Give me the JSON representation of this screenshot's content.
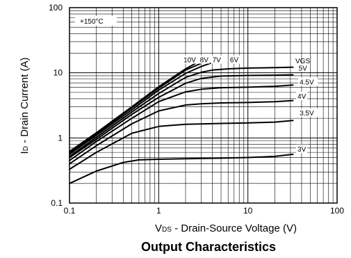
{
  "chart_data": {
    "type": "line",
    "title": "Output Characteristics",
    "xlabel": {
      "sym": "V",
      "sub": "DS",
      "rest": " - Drain-Source Voltage (V)"
    },
    "ylabel": {
      "sym": "I",
      "sub": "D",
      "rest": " - Drain Current (A)"
    },
    "x_scale": "log",
    "y_scale": "log",
    "xlim": [
      0.1,
      100
    ],
    "ylim": [
      0.1,
      100
    ],
    "x_ticks": [
      {
        "value": 0.1,
        "label": "0.1"
      },
      {
        "value": 1,
        "label": "1"
      },
      {
        "value": 10,
        "label": "10"
      },
      {
        "value": 100,
        "label": "100"
      }
    ],
    "y_ticks": [
      {
        "value": 0.1,
        "label": "0.1"
      },
      {
        "value": 1,
        "label": "1"
      },
      {
        "value": 10,
        "label": "10"
      },
      {
        "value": 100,
        "label": "100"
      }
    ],
    "grid": true,
    "annotation": "+150°C",
    "legend_header": "VGS",
    "series": [
      {
        "name": "10V",
        "label_at": [
          1.9,
          14.5
        ],
        "points": [
          [
            0.1,
            0.62
          ],
          [
            0.2,
            1.2
          ],
          [
            0.5,
            3.0
          ],
          [
            1,
            6.1
          ],
          [
            2,
            11.5
          ],
          [
            2.6,
            14.0
          ]
        ]
      },
      {
        "name": "8V",
        "label_at": [
          2.9,
          14.5
        ],
        "points": [
          [
            0.1,
            0.59
          ],
          [
            0.2,
            1.15
          ],
          [
            0.5,
            2.9
          ],
          [
            1,
            5.8
          ],
          [
            2,
            11.0
          ],
          [
            3.0,
            14.0
          ]
        ]
      },
      {
        "name": "7V",
        "label_at": [
          4.0,
          14.5
        ],
        "points": [
          [
            0.1,
            0.56
          ],
          [
            0.2,
            1.1
          ],
          [
            0.5,
            2.7
          ],
          [
            1,
            5.4
          ],
          [
            2,
            9.8
          ],
          [
            3,
            12.5
          ],
          [
            3.8,
            14.0
          ]
        ]
      },
      {
        "name": "6V",
        "label_at": [
          6.3,
          14.5
        ],
        "points": [
          [
            0.1,
            0.52
          ],
          [
            0.2,
            1.02
          ],
          [
            0.5,
            2.5
          ],
          [
            1,
            4.8
          ],
          [
            2,
            8.5
          ],
          [
            3,
            10.2
          ],
          [
            4,
            11.0
          ],
          [
            6,
            11.5
          ],
          [
            10,
            11.8
          ],
          [
            20,
            12.0
          ],
          [
            32,
            12.2
          ]
        ]
      },
      {
        "name": "5V",
        "label_at": [
          37,
          10.8
        ],
        "points": [
          [
            0.1,
            0.5
          ],
          [
            0.2,
            0.95
          ],
          [
            0.5,
            2.3
          ],
          [
            1,
            4.2
          ],
          [
            2,
            6.9
          ],
          [
            3,
            8.2
          ],
          [
            5,
            8.9
          ],
          [
            10,
            9.1
          ],
          [
            20,
            9.2
          ],
          [
            32,
            9.3
          ]
        ]
      },
      {
        "name": "4.5V",
        "label_at": [
          38,
          6.6
        ],
        "points": [
          [
            0.1,
            0.45
          ],
          [
            0.2,
            0.88
          ],
          [
            0.5,
            2.0
          ],
          [
            1,
            3.6
          ],
          [
            2,
            5.1
          ],
          [
            3,
            5.6
          ],
          [
            5,
            5.9
          ],
          [
            10,
            6.0
          ],
          [
            20,
            6.2
          ],
          [
            32,
            6.5
          ]
        ]
      },
      {
        "name": "4V",
        "label_at": [
          36,
          4.0
        ],
        "points": [
          [
            0.1,
            0.4
          ],
          [
            0.2,
            0.76
          ],
          [
            0.5,
            1.65
          ],
          [
            1,
            2.6
          ],
          [
            2,
            3.2
          ],
          [
            3,
            3.35
          ],
          [
            5,
            3.45
          ],
          [
            10,
            3.5
          ],
          [
            20,
            3.6
          ],
          [
            32,
            3.75
          ]
        ]
      },
      {
        "name": "3.5V",
        "label_at": [
          38,
          2.22
        ],
        "points": [
          [
            0.1,
            0.33
          ],
          [
            0.2,
            0.6
          ],
          [
            0.5,
            1.18
          ],
          [
            1,
            1.5
          ],
          [
            2,
            1.62
          ],
          [
            5,
            1.67
          ],
          [
            10,
            1.7
          ],
          [
            20,
            1.75
          ],
          [
            32,
            1.85
          ]
        ]
      },
      {
        "name": "3V",
        "label_at": [
          36,
          0.62
        ],
        "points": [
          [
            0.1,
            0.2
          ],
          [
            0.2,
            0.31
          ],
          [
            0.4,
            0.42
          ],
          [
            0.6,
            0.46
          ],
          [
            1,
            0.47
          ],
          [
            5,
            0.49
          ],
          [
            10,
            0.5
          ],
          [
            20,
            0.52
          ],
          [
            32,
            0.56
          ]
        ]
      }
    ]
  }
}
